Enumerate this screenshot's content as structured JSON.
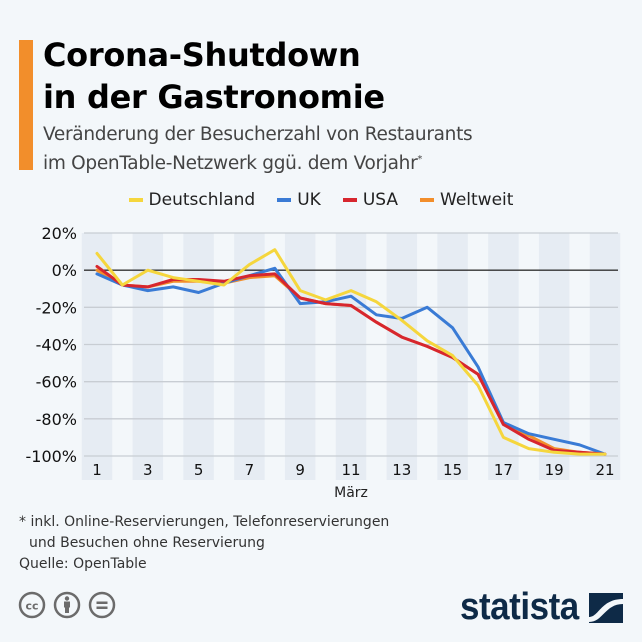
{
  "header": {
    "title_line1": "Corona-Shutdown",
    "title_line2": "in der Gastronomie",
    "subtitle_line1": "Veränderung der Besucherzahl von Restaurants",
    "subtitle_line2": "im OpenTable-Netzwerk ggü. dem Vorjahr",
    "subtitle_mark": "*",
    "accent_color": "#f28e2b"
  },
  "legend": [
    {
      "label": "Deutschland",
      "color": "#f5d63d"
    },
    {
      "label": "UK",
      "color": "#3a7bd5"
    },
    {
      "label": "USA",
      "color": "#d7262e"
    },
    {
      "label": "Weltweit",
      "color": "#f28e2b"
    }
  ],
  "chart_data": {
    "type": "line",
    "title": "Corona-Shutdown in der Gastronomie",
    "xlabel": "März",
    "ylabel": "",
    "x": [
      1,
      2,
      3,
      4,
      5,
      6,
      7,
      8,
      9,
      10,
      11,
      12,
      13,
      14,
      15,
      16,
      17,
      18,
      19,
      20,
      21
    ],
    "xticks": [
      1,
      3,
      5,
      7,
      9,
      11,
      13,
      15,
      17,
      19,
      21
    ],
    "xtick_labels": [
      "1",
      "3",
      "5",
      "7",
      "9",
      "11",
      "13",
      "15",
      "17",
      "19",
      "21"
    ],
    "yticks": [
      20,
      0,
      -20,
      -40,
      -60,
      -80,
      -100
    ],
    "ytick_labels": [
      "20%",
      "0%",
      "-20%",
      "-40%",
      "-60%",
      "-80%",
      "-100%"
    ],
    "ylim": [
      -100,
      20
    ],
    "xlim": [
      1,
      21
    ],
    "grid": true,
    "legend_position": "top-center",
    "series": [
      {
        "name": "Weltweit",
        "color": "#f28e2b",
        "values": [
          0,
          -8,
          -9,
          -6,
          -6,
          -7,
          -4,
          -3,
          -15,
          -18,
          -19,
          -28,
          -36,
          -41,
          -47,
          -56,
          -83,
          -89,
          -96,
          -98,
          -99
        ]
      },
      {
        "name": "UK",
        "color": "#3a7bd5",
        "values": [
          -2,
          -8,
          -11,
          -9,
          -12,
          -7,
          -3,
          1,
          -18,
          -17,
          -14,
          -24,
          -26,
          -20,
          -31,
          -52,
          -82,
          -88,
          -91,
          -94,
          -99
        ]
      },
      {
        "name": "USA",
        "color": "#d7262e",
        "values": [
          2,
          -8,
          -9,
          -5,
          -5,
          -6,
          -3,
          -2,
          -15,
          -18,
          -19,
          -28,
          -36,
          -41,
          -47,
          -56,
          -83,
          -91,
          -97,
          -98,
          -99
        ]
      },
      {
        "name": "Deutschland",
        "color": "#f5d63d",
        "values": [
          9,
          -8,
          0,
          -4,
          -6,
          -8,
          3,
          11,
          -11,
          -16,
          -11,
          -17,
          -27,
          -38,
          -46,
          -62,
          -90,
          -96,
          -98,
          -99,
          -99
        ]
      }
    ]
  },
  "footer": {
    "note_line1": "* inkl. Online-Reservierungen, Telefonreservierungen",
    "note_line2": "und Besuchen ohne Reservierung",
    "source": "Quelle: OpenTable",
    "brand": "statista",
    "license_icons": [
      "cc-icon",
      "by-icon",
      "nd-icon"
    ]
  }
}
